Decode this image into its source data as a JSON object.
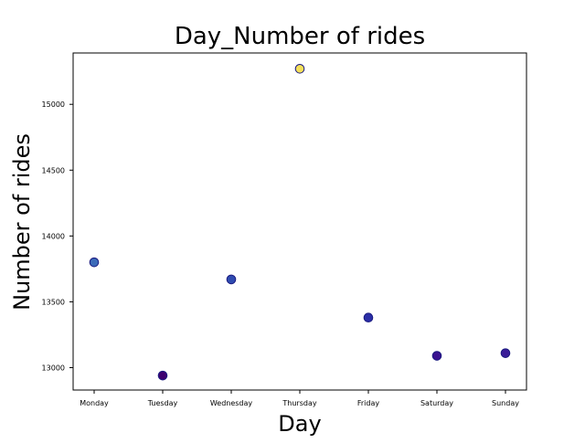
{
  "chart_data": {
    "type": "scatter",
    "title": "Day_Number of rides",
    "xlabel": "Day",
    "ylabel": "Number of rides",
    "categories": [
      "Monday",
      "Tuesday",
      "Wednesday",
      "Thursday",
      "Friday",
      "Saturday",
      "Sunday"
    ],
    "values": [
      13800,
      12940,
      13670,
      15270,
      13380,
      13090,
      13110
    ],
    "point_colors": [
      "#3b6ab8",
      "#3d0070",
      "#2f4cb0",
      "#f5e05a",
      "#2b2ea6",
      "#3a1290",
      "#3a1d98"
    ],
    "edge_color": "#1a1a80",
    "yticks": [
      13000,
      13500,
      14000,
      14500,
      15000
    ],
    "ylim": [
      12830,
      15390
    ],
    "grid": false,
    "legend": "none"
  }
}
